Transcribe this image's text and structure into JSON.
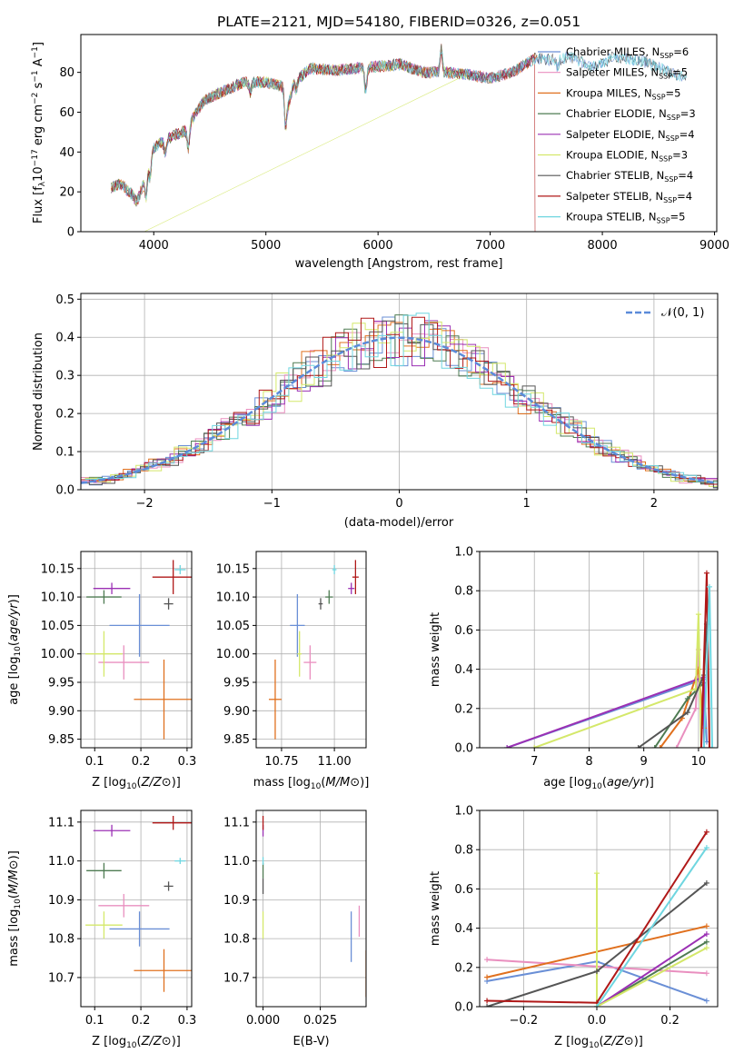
{
  "title": "PLATE=2121, MJD=54180, FIBERID=0326, z=0.051",
  "colors": {
    "chabrier_miles": "#6a8fd6",
    "salpeter_miles": "#e98fbf",
    "kroupa_miles": "#e0701e",
    "chabrier_elodie": "#4e7b52",
    "salpeter_elodie": "#9b30b4",
    "kroupa_elodie": "#d4e86a",
    "chabrier_stelib": "#555555",
    "salpeter_stelib": "#b01818",
    "kroupa_stelib": "#6fd6e0",
    "gaussian": "#5b8bd9",
    "grid": "#b0b0b0"
  },
  "chart_data": [
    {
      "id": "spectrum",
      "type": "line",
      "xlabel": "wavelength [Angstrom, rest frame]",
      "ylabel": "Flux [f_λ10^-17 erg cm^-2 s^-1 A^-1]",
      "xlim": [
        3350,
        9020
      ],
      "ylim": [
        0,
        99
      ],
      "xticks": [
        4000,
        5000,
        6000,
        7000,
        8000,
        9000
      ],
      "yticks": [
        0,
        20,
        40,
        60,
        80
      ],
      "grid": false,
      "legend_position": "right",
      "legend": [
        {
          "base": "Chabrier MILES, N",
          "sub": "SSP",
          "tail": "=6",
          "color_key": "chabrier_miles"
        },
        {
          "base": "Salpeter MILES, N",
          "sub": "SSP",
          "tail": "=5",
          "color_key": "salpeter_miles"
        },
        {
          "base": "Kroupa MILES, N",
          "sub": "SSP",
          "tail": "=5",
          "color_key": "kroupa_miles"
        },
        {
          "base": "Chabrier ELODIE, N",
          "sub": "SSP",
          "tail": "=3",
          "color_key": "chabrier_elodie"
        },
        {
          "base": "Salpeter ELODIE, N",
          "sub": "SSP",
          "tail": "=4",
          "color_key": "salpeter_elodie"
        },
        {
          "base": "Kroupa ELODIE, N",
          "sub": "SSP",
          "tail": "=3",
          "color_key": "kroupa_elodie"
        },
        {
          "base": "Chabrier STELIB, N",
          "sub": "SSP",
          "tail": "=4",
          "color_key": "chabrier_stelib"
        },
        {
          "base": "Salpeter STELIB, N",
          "sub": "SSP",
          "tail": "=4",
          "color_key": "salpeter_stelib"
        },
        {
          "base": "Kroupa STELIB, N",
          "sub": "SSP",
          "tail": "=5",
          "color_key": "kroupa_stelib"
        }
      ],
      "continuum_knots": [
        [
          3620,
          22
        ],
        [
          3700,
          24
        ],
        [
          3800,
          19
        ],
        [
          3850,
          15
        ],
        [
          3910,
          24
        ],
        [
          3970,
          38
        ],
        [
          4000,
          42
        ],
        [
          4100,
          46
        ],
        [
          4200,
          49
        ],
        [
          4300,
          51
        ],
        [
          4350,
          57
        ],
        [
          4450,
          66
        ],
        [
          4600,
          70
        ],
        [
          4800,
          75
        ],
        [
          5000,
          75
        ],
        [
          5150,
          73
        ],
        [
          5200,
          63
        ],
        [
          5250,
          75
        ],
        [
          5400,
          82
        ],
        [
          5600,
          81
        ],
        [
          5800,
          82
        ],
        [
          6000,
          83
        ],
        [
          6200,
          84
        ],
        [
          6400,
          80
        ],
        [
          6600,
          80
        ],
        [
          6800,
          79
        ],
        [
          7000,
          77
        ],
        [
          7200,
          80
        ],
        [
          7400,
          87
        ],
        [
          7600,
          86
        ],
        [
          7700,
          88
        ],
        [
          7900,
          83
        ],
        [
          8000,
          84
        ],
        [
          8100,
          88
        ],
        [
          8400,
          85
        ],
        [
          8600,
          80
        ],
        [
          8700,
          78
        ]
      ],
      "series_ranges": [
        [
          3620,
          8750
        ],
        [
          3620,
          7400
        ],
        [
          3620,
          7420
        ],
        [
          3620,
          7400
        ],
        [
          3620,
          7400
        ],
        [
          3620,
          6800
        ],
        [
          3620,
          8750
        ],
        [
          3620,
          7400
        ],
        [
          3620,
          8750
        ]
      ],
      "features": [
        [
          3933,
          -12
        ],
        [
          3968,
          -10
        ],
        [
          4102,
          -6
        ],
        [
          4308,
          -10
        ],
        [
          4861,
          -5
        ],
        [
          5175,
          -15
        ],
        [
          5270,
          -5
        ],
        [
          5890,
          -12
        ],
        [
          6563,
          -6
        ],
        [
          6563,
          18
        ],
        [
          7600,
          -3
        ]
      ],
      "drops": [
        [
          3915,
          0,
          "kroupa_elodie"
        ],
        [
          6790,
          0,
          "kroupa_elodie"
        ],
        [
          7400,
          0,
          "salpeter_stelib"
        ]
      ]
    },
    {
      "id": "residuals",
      "type": "step",
      "xlabel": "(data-model)/error",
      "ylabel": "Normed distribution",
      "xlim": [
        -2.5,
        2.5
      ],
      "ylim": [
        0,
        0.515
      ],
      "xticks": [
        -2,
        -1,
        0,
        1,
        2
      ],
      "xtick_labels": [
        "−2",
        "−1",
        "0",
        "1",
        "2"
      ],
      "yticks": [
        0.0,
        0.1,
        0.2,
        0.3,
        0.4,
        0.5
      ],
      "ytick_labels": [
        "0.0",
        "0.1",
        "0.2",
        "0.3",
        "0.4",
        "0.5"
      ],
      "grid": true,
      "legend_position": "top-right",
      "legend_label": "𝒩(0, 1)",
      "bin_width": 0.1
    },
    {
      "id": "age_vs_z",
      "type": "errorbar",
      "xlabel": "Z [log10(Z/Z⊙)]",
      "ylabel": "age  [log10(age/yr)]",
      "xlim": [
        0.07,
        0.31
      ],
      "ylim": [
        9.835,
        10.18
      ],
      "xticks": [
        0.1,
        0.2,
        0.3
      ],
      "xtick_labels": [
        "0.1",
        "0.2",
        "0.3"
      ],
      "yticks": [
        9.85,
        9.9,
        9.95,
        10.0,
        10.05,
        10.1,
        10.15
      ],
      "ytick_labels": [
        "9.85",
        "9.90",
        "9.95",
        "10.00",
        "10.05",
        "10.10",
        "10.15"
      ],
      "grid": true,
      "points": [
        {
          "series": "chabrier_miles",
          "x": 0.197,
          "xerr": 0.065,
          "y": 10.05,
          "yerr": 0.055
        },
        {
          "series": "salpeter_miles",
          "x": 0.163,
          "xerr": 0.055,
          "y": 9.985,
          "yerr": 0.03
        },
        {
          "series": "kroupa_miles",
          "x": 0.25,
          "xerr": 0.065,
          "y": 9.92,
          "yerr": 0.07
        },
        {
          "series": "chabrier_elodie",
          "x": 0.12,
          "xerr": 0.038,
          "y": 10.1,
          "yerr": 0.012
        },
        {
          "series": "salpeter_elodie",
          "x": 0.137,
          "xerr": 0.04,
          "y": 10.115,
          "yerr": 0.01
        },
        {
          "series": "kroupa_elodie",
          "x": 0.12,
          "xerr": 0.04,
          "y": 10.0,
          "yerr": 0.04
        },
        {
          "series": "chabrier_stelib",
          "x": 0.26,
          "xerr": 0.01,
          "y": 10.088,
          "yerr": 0.01
        },
        {
          "series": "salpeter_stelib",
          "x": 0.27,
          "xerr": 0.045,
          "y": 10.135,
          "yerr": 0.03
        },
        {
          "series": "kroupa_stelib",
          "x": 0.285,
          "xerr": 0.012,
          "y": 10.148,
          "yerr": 0.008
        }
      ]
    },
    {
      "id": "age_vs_mass",
      "type": "errorbar",
      "xlabel": "mass [log10(M/M⊙)]",
      "ylabel": "",
      "xlim": [
        10.63,
        11.15
      ],
      "ylim": [
        9.835,
        10.18
      ],
      "xticks": [
        10.75,
        11.0
      ],
      "xtick_labels": [
        "10.75",
        "11.00"
      ],
      "yticks": [
        9.85,
        9.9,
        9.95,
        10.0,
        10.05,
        10.1,
        10.15
      ],
      "ytick_labels": [
        "9.85",
        "9.90",
        "9.95",
        "10.00",
        "10.05",
        "10.10",
        "10.15"
      ],
      "grid": true,
      "points": [
        {
          "series": "chabrier_miles",
          "x": 10.825,
          "xerr": 0.035,
          "y": 10.05,
          "yerr": 0.055
        },
        {
          "series": "salpeter_miles",
          "x": 10.885,
          "xerr": 0.03,
          "y": 9.985,
          "yerr": 0.03
        },
        {
          "series": "kroupa_miles",
          "x": 10.72,
          "xerr": 0.03,
          "y": 9.92,
          "yerr": 0.07
        },
        {
          "series": "chabrier_elodie",
          "x": 10.975,
          "xerr": 0.018,
          "y": 10.1,
          "yerr": 0.012
        },
        {
          "series": "salpeter_elodie",
          "x": 11.08,
          "xerr": 0.015,
          "y": 10.115,
          "yerr": 0.01
        },
        {
          "series": "kroupa_elodie",
          "x": 10.835,
          "xerr": 0.01,
          "y": 10.0,
          "yerr": 0.04
        },
        {
          "series": "chabrier_stelib",
          "x": 10.935,
          "xerr": 0.01,
          "y": 10.088,
          "yerr": 0.01
        },
        {
          "series": "salpeter_stelib",
          "x": 11.1,
          "xerr": 0.015,
          "y": 10.135,
          "yerr": 0.03
        },
        {
          "series": "kroupa_stelib",
          "x": 11.0,
          "xerr": 0.01,
          "y": 10.148,
          "yerr": 0.008
        }
      ]
    },
    {
      "id": "mass_weight_vs_age",
      "type": "line",
      "xlabel": "age  [log10(age/yr)]",
      "ylabel": "mass weight",
      "xlim": [
        6.0,
        10.35
      ],
      "ylim": [
        0,
        1.0
      ],
      "xticks": [
        7,
        8,
        9,
        10
      ],
      "xtick_labels": [
        "7",
        "8",
        "9",
        "10"
      ],
      "yticks": [
        0.0,
        0.2,
        0.4,
        0.6,
        0.8,
        1.0
      ],
      "ytick_labels": [
        "0.0",
        "0.2",
        "0.4",
        "0.6",
        "0.8",
        "1.0"
      ],
      "grid": true,
      "series": [
        {
          "name": "chabrier_miles",
          "x": [
            6.5,
            10.1,
            10.15
          ],
          "y": [
            0.0,
            0.35,
            0.03
          ]
        },
        {
          "name": "salpeter_miles",
          "x": [
            9.6,
            9.95,
            10.0
          ],
          "y": [
            0.0,
            0.2,
            0.5
          ]
        },
        {
          "name": "kroupa_miles",
          "x": [
            9.3,
            9.7,
            10.0,
            10.1
          ],
          "y": [
            0.0,
            0.15,
            0.4,
            0.1
          ]
        },
        {
          "name": "chabrier_elodie",
          "x": [
            9.2,
            9.8,
            10.1
          ],
          "y": [
            0.0,
            0.25,
            0.33
          ]
        },
        {
          "name": "salpeter_elodie",
          "x": [
            6.5,
            10.1,
            10.1
          ],
          "y": [
            0.0,
            0.36,
            0.0
          ]
        },
        {
          "name": "kroupa_elodie",
          "x": [
            7.0,
            9.95,
            10.0,
            10.05
          ],
          "y": [
            0.0,
            0.3,
            0.68,
            0.0
          ]
        },
        {
          "name": "chabrier_stelib",
          "x": [
            8.9,
            9.8,
            10.1,
            10.15
          ],
          "y": [
            0.0,
            0.18,
            0.37,
            0.63
          ]
        },
        {
          "name": "salpeter_stelib",
          "x": [
            10.05,
            10.15,
            10.2
          ],
          "y": [
            0.0,
            0.89,
            0.0
          ]
        },
        {
          "name": "kroupa_stelib",
          "x": [
            10.1,
            10.2,
            10.25
          ],
          "y": [
            0.0,
            0.82,
            0.0
          ]
        }
      ]
    },
    {
      "id": "mass_vs_z",
      "type": "errorbar",
      "xlabel": "Z [log10(Z/Z⊙)]",
      "ylabel": "mass [log10(M/M⊙)]",
      "xlim": [
        0.07,
        0.31
      ],
      "ylim": [
        10.625,
        11.13
      ],
      "xticks": [
        0.1,
        0.2,
        0.3
      ],
      "xtick_labels": [
        "0.1",
        "0.2",
        "0.3"
      ],
      "yticks": [
        10.7,
        10.8,
        10.9,
        11.0,
        11.1
      ],
      "ytick_labels": [
        "10.7",
        "10.8",
        "10.9",
        "11.0",
        "11.1"
      ],
      "grid": true,
      "points": [
        {
          "series": "chabrier_miles",
          "x": 0.197,
          "xerr": 0.065,
          "y": 10.825,
          "yerr": 0.045
        },
        {
          "series": "salpeter_miles",
          "x": 0.163,
          "xerr": 0.055,
          "y": 10.885,
          "yerr": 0.03
        },
        {
          "series": "kroupa_miles",
          "x": 0.25,
          "xerr": 0.065,
          "y": 10.718,
          "yerr": 0.055
        },
        {
          "series": "chabrier_elodie",
          "x": 0.12,
          "xerr": 0.038,
          "y": 10.975,
          "yerr": 0.02
        },
        {
          "series": "salpeter_elodie",
          "x": 0.137,
          "xerr": 0.04,
          "y": 11.078,
          "yerr": 0.015
        },
        {
          "series": "kroupa_elodie",
          "x": 0.12,
          "xerr": 0.04,
          "y": 10.835,
          "yerr": 0.035
        },
        {
          "series": "chabrier_stelib",
          "x": 0.26,
          "xerr": 0.01,
          "y": 10.935,
          "yerr": 0.012
        },
        {
          "series": "salpeter_stelib",
          "x": 0.27,
          "xerr": 0.045,
          "y": 11.098,
          "yerr": 0.018
        },
        {
          "series": "kroupa_stelib",
          "x": 0.285,
          "xerr": 0.012,
          "y": 11.0,
          "yerr": 0.008
        }
      ]
    },
    {
      "id": "mass_vs_ebv",
      "type": "errorbar",
      "xlabel": "E(B-V)",
      "ylabel": "",
      "xlim": [
        -0.003,
        0.045
      ],
      "ylim": [
        10.625,
        11.13
      ],
      "xticks": [
        0.0,
        0.025
      ],
      "xtick_labels": [
        "0.000",
        "0.025"
      ],
      "yticks": [
        10.7,
        10.8,
        10.9,
        11.0,
        11.1
      ],
      "ytick_labels": [
        "10.7",
        "10.8",
        "10.9",
        "11.0",
        "11.1"
      ],
      "grid": true,
      "points": [
        {
          "series": "chabrier_miles",
          "x": 0.0385,
          "xerr": 0,
          "y": 10.805,
          "yerr": 0.065
        },
        {
          "series": "salpeter_miles",
          "x": 0.042,
          "xerr": 0,
          "y": 10.845,
          "yerr": 0.04
        },
        {
          "series": "kroupa_miles",
          "x": 0.045,
          "xerr": 0,
          "y": 10.71,
          "yerr": 0.06
        },
        {
          "series": "chabrier_elodie",
          "x": 0.0,
          "xerr": 0,
          "y": 10.975,
          "yerr": 0.02
        },
        {
          "series": "salpeter_elodie",
          "x": 0.0,
          "xerr": 0,
          "y": 11.078,
          "yerr": 0.015
        },
        {
          "series": "kroupa_elodie",
          "x": 0.0,
          "xerr": 0,
          "y": 10.835,
          "yerr": 0.035
        },
        {
          "series": "chabrier_stelib",
          "x": 0.0,
          "xerr": 0,
          "y": 10.935,
          "yerr": 0.02
        },
        {
          "series": "salpeter_stelib",
          "x": 0.0,
          "xerr": 0,
          "y": 11.098,
          "yerr": 0.018
        },
        {
          "series": "kroupa_stelib",
          "x": 0.0,
          "xerr": 0,
          "y": 11.0,
          "yerr": 0.01
        }
      ]
    },
    {
      "id": "mass_weight_vs_z",
      "type": "line",
      "xlabel": "Z [log10(Z/Z⊙)]",
      "ylabel": "mass weight",
      "xlim": [
        -0.32,
        0.33
      ],
      "ylim": [
        0,
        1.0
      ],
      "xticks": [
        -0.2,
        0.0,
        0.2
      ],
      "xtick_labels": [
        "−0.2",
        "0.0",
        "0.2"
      ],
      "yticks": [
        0.0,
        0.2,
        0.4,
        0.6,
        0.8,
        1.0
      ],
      "ytick_labels": [
        "0.0",
        "0.2",
        "0.4",
        "0.6",
        "0.8",
        "1.0"
      ],
      "grid": true,
      "series": [
        {
          "name": "chabrier_miles",
          "x": [
            -0.3,
            0.0,
            0.3
          ],
          "y": [
            0.13,
            0.23,
            0.03
          ]
        },
        {
          "name": "salpeter_miles",
          "x": [
            -0.3,
            0.3
          ],
          "y": [
            0.24,
            0.17
          ]
        },
        {
          "name": "kroupa_miles",
          "x": [
            -0.3,
            0.3
          ],
          "y": [
            0.15,
            0.41
          ]
        },
        {
          "name": "chabrier_elodie",
          "x": [
            0.0,
            0.3
          ],
          "y": [
            0.0,
            0.33
          ]
        },
        {
          "name": "salpeter_elodie",
          "x": [
            0.0,
            0.3
          ],
          "y": [
            0.0,
            0.37
          ]
        },
        {
          "name": "kroupa_elodie",
          "x": [
            0.0,
            0.0,
            0.3
          ],
          "y": [
            0.68,
            0.0,
            0.3
          ]
        },
        {
          "name": "chabrier_stelib",
          "x": [
            -0.3,
            0.0,
            0.3
          ],
          "y": [
            0.0,
            0.18,
            0.63
          ]
        },
        {
          "name": "salpeter_stelib",
          "x": [
            -0.3,
            0.0,
            0.3
          ],
          "y": [
            0.03,
            0.02,
            0.89
          ]
        },
        {
          "name": "kroupa_stelib",
          "x": [
            0.0,
            0.3
          ],
          "y": [
            0.0,
            0.81
          ]
        }
      ]
    }
  ]
}
